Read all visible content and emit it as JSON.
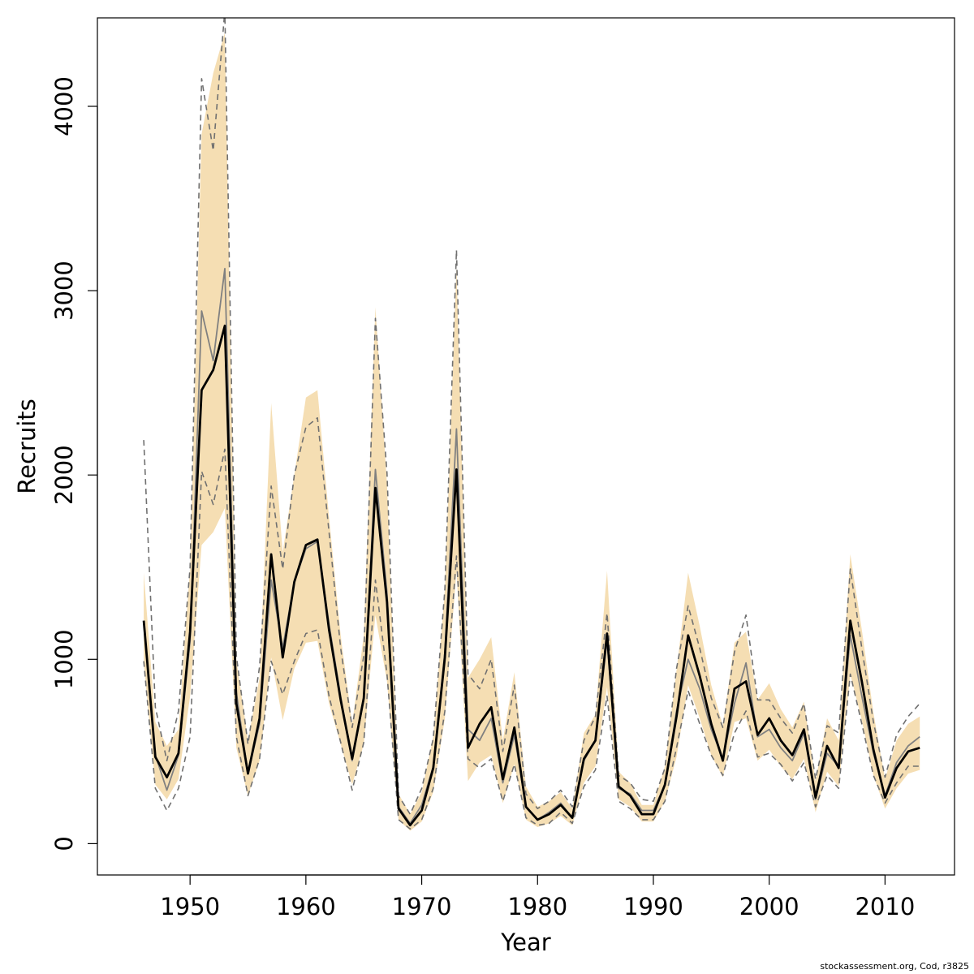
{
  "chart_data": {
    "type": "line",
    "title": "",
    "xlabel": "Year",
    "ylabel": "Recruits",
    "footnote": "stockassessment.org, Cod, r3825",
    "xlim": [
      1942,
      2016
    ],
    "ylim": [
      -170,
      4480
    ],
    "x_ticks": [
      1950,
      1960,
      1970,
      1980,
      1990,
      2000,
      2010
    ],
    "y_ticks": [
      0,
      1000,
      2000,
      3000,
      4000
    ],
    "grid": false,
    "legend": "none",
    "colors": {
      "band": "#f5deb3",
      "main_line": "#000000",
      "comparison_line": "#808080",
      "comparison_dashed": "#707070"
    },
    "x": [
      1946,
      1947,
      1948,
      1949,
      1950,
      1951,
      1952,
      1953,
      1954,
      1955,
      1956,
      1957,
      1958,
      1959,
      1960,
      1961,
      1962,
      1963,
      1964,
      1965,
      1966,
      1967,
      1968,
      1969,
      1970,
      1971,
      1972,
      1973,
      1974,
      1975,
      1976,
      1977,
      1978,
      1979,
      1980,
      1981,
      1982,
      1983,
      1984,
      1985,
      1986,
      1987,
      1988,
      1989,
      1990,
      1991,
      1992,
      1993,
      1994,
      1995,
      1996,
      1997,
      1998,
      1999,
      2000,
      2001,
      2002,
      2003,
      2004,
      2005,
      2006,
      2007,
      2008,
      2009,
      2010,
      2011,
      2012,
      2013
    ],
    "series": [
      {
        "role": "estimate",
        "values": [
          1210,
          470,
          360,
          490,
          1150,
          2460,
          2570,
          2810,
          760,
          380,
          680,
          1570,
          1010,
          1420,
          1620,
          1650,
          1160,
          780,
          460,
          790,
          1930,
          1310,
          190,
          100,
          180,
          410,
          1010,
          2030,
          520,
          650,
          740,
          350,
          630,
          200,
          130,
          160,
          210,
          140,
          460,
          560,
          1140,
          310,
          260,
          160,
          160,
          320,
          690,
          1130,
          910,
          650,
          450,
          840,
          880,
          590,
          680,
          560,
          480,
          620,
          250,
          530,
          410,
          1210,
          880,
          510,
          250,
          410,
          500,
          520
        ]
      },
      {
        "role": "band_upper",
        "values": [
          1470,
          660,
          530,
          620,
          1500,
          3850,
          4180,
          4400,
          1000,
          560,
          900,
          2390,
          1580,
          2000,
          2420,
          2460,
          1770,
          1130,
          650,
          1130,
          2910,
          1950,
          270,
          160,
          280,
          580,
          1380,
          3130,
          900,
          1000,
          1120,
          560,
          930,
          310,
          200,
          230,
          280,
          190,
          600,
          700,
          1480,
          390,
          330,
          210,
          210,
          420,
          940,
          1470,
          1180,
          860,
          640,
          1090,
          1150,
          780,
          870,
          730,
          630,
          770,
          340,
          680,
          560,
          1570,
          1160,
          710,
          350,
          560,
          650,
          690
        ]
      },
      {
        "role": "band_lower",
        "values": [
          980,
          320,
          240,
          350,
          800,
          1620,
          1690,
          1820,
          520,
          260,
          450,
          1010,
          670,
          950,
          1090,
          1100,
          760,
          540,
          320,
          540,
          1240,
          880,
          130,
          70,
          120,
          280,
          680,
          1480,
          340,
          440,
          480,
          220,
          430,
          130,
          90,
          110,
          150,
          100,
          330,
          420,
          850,
          240,
          200,
          120,
          120,
          230,
          470,
          860,
          680,
          480,
          360,
          660,
          680,
          450,
          510,
          420,
          350,
          460,
          170,
          390,
          310,
          920,
          670,
          370,
          190,
          300,
          380,
          400
        ]
      },
      {
        "role": "comparison",
        "values": [
          1200,
          480,
          290,
          480,
          1100,
          2890,
          2620,
          3120,
          820,
          380,
          650,
          1430,
          1060,
          1420,
          1600,
          1640,
          1190,
          800,
          450,
          780,
          2030,
          1360,
          200,
          110,
          210,
          420,
          1040,
          2250,
          620,
          560,
          680,
          330,
          590,
          200,
          130,
          170,
          220,
          140,
          450,
          560,
          1100,
          300,
          270,
          180,
          180,
          320,
          720,
          1000,
          840,
          620,
          460,
          760,
          980,
          580,
          620,
          520,
          450,
          600,
          240,
          490,
          420,
          1130,
          800,
          490,
          260,
          440,
          530,
          580
        ]
      },
      {
        "role": "comparison_upper",
        "values": [
          2190,
          740,
          450,
          720,
          1500,
          4150,
          3760,
          4520,
          1020,
          540,
          960,
          1940,
          1490,
          2000,
          2260,
          2310,
          1690,
          1060,
          630,
          1020,
          2850,
          2010,
          260,
          160,
          300,
          570,
          1380,
          3220,
          920,
          840,
          1000,
          500,
          860,
          270,
          190,
          230,
          290,
          200,
          560,
          690,
          1250,
          370,
          330,
          240,
          230,
          410,
          950,
          1290,
          1060,
          790,
          630,
          1040,
          1240,
          780,
          780,
          680,
          600,
          760,
          350,
          640,
          600,
          1490,
          1060,
          660,
          360,
          590,
          690,
          760
        ]
      },
      {
        "role": "comparison_lower",
        "values": [
          990,
          300,
          180,
          300,
          580,
          2020,
          1840,
          2140,
          580,
          260,
          460,
          990,
          810,
          990,
          1140,
          1160,
          800,
          550,
          290,
          550,
          1430,
          920,
          130,
          80,
          130,
          300,
          720,
          1560,
          460,
          410,
          460,
          230,
          430,
          140,
          100,
          110,
          170,
          110,
          310,
          400,
          800,
          230,
          190,
          130,
          130,
          230,
          520,
          830,
          650,
          480,
          370,
          600,
          720,
          470,
          490,
          430,
          340,
          440,
          200,
          370,
          300,
          920,
          650,
          370,
          220,
          330,
          420,
          420
        ]
      }
    ]
  }
}
